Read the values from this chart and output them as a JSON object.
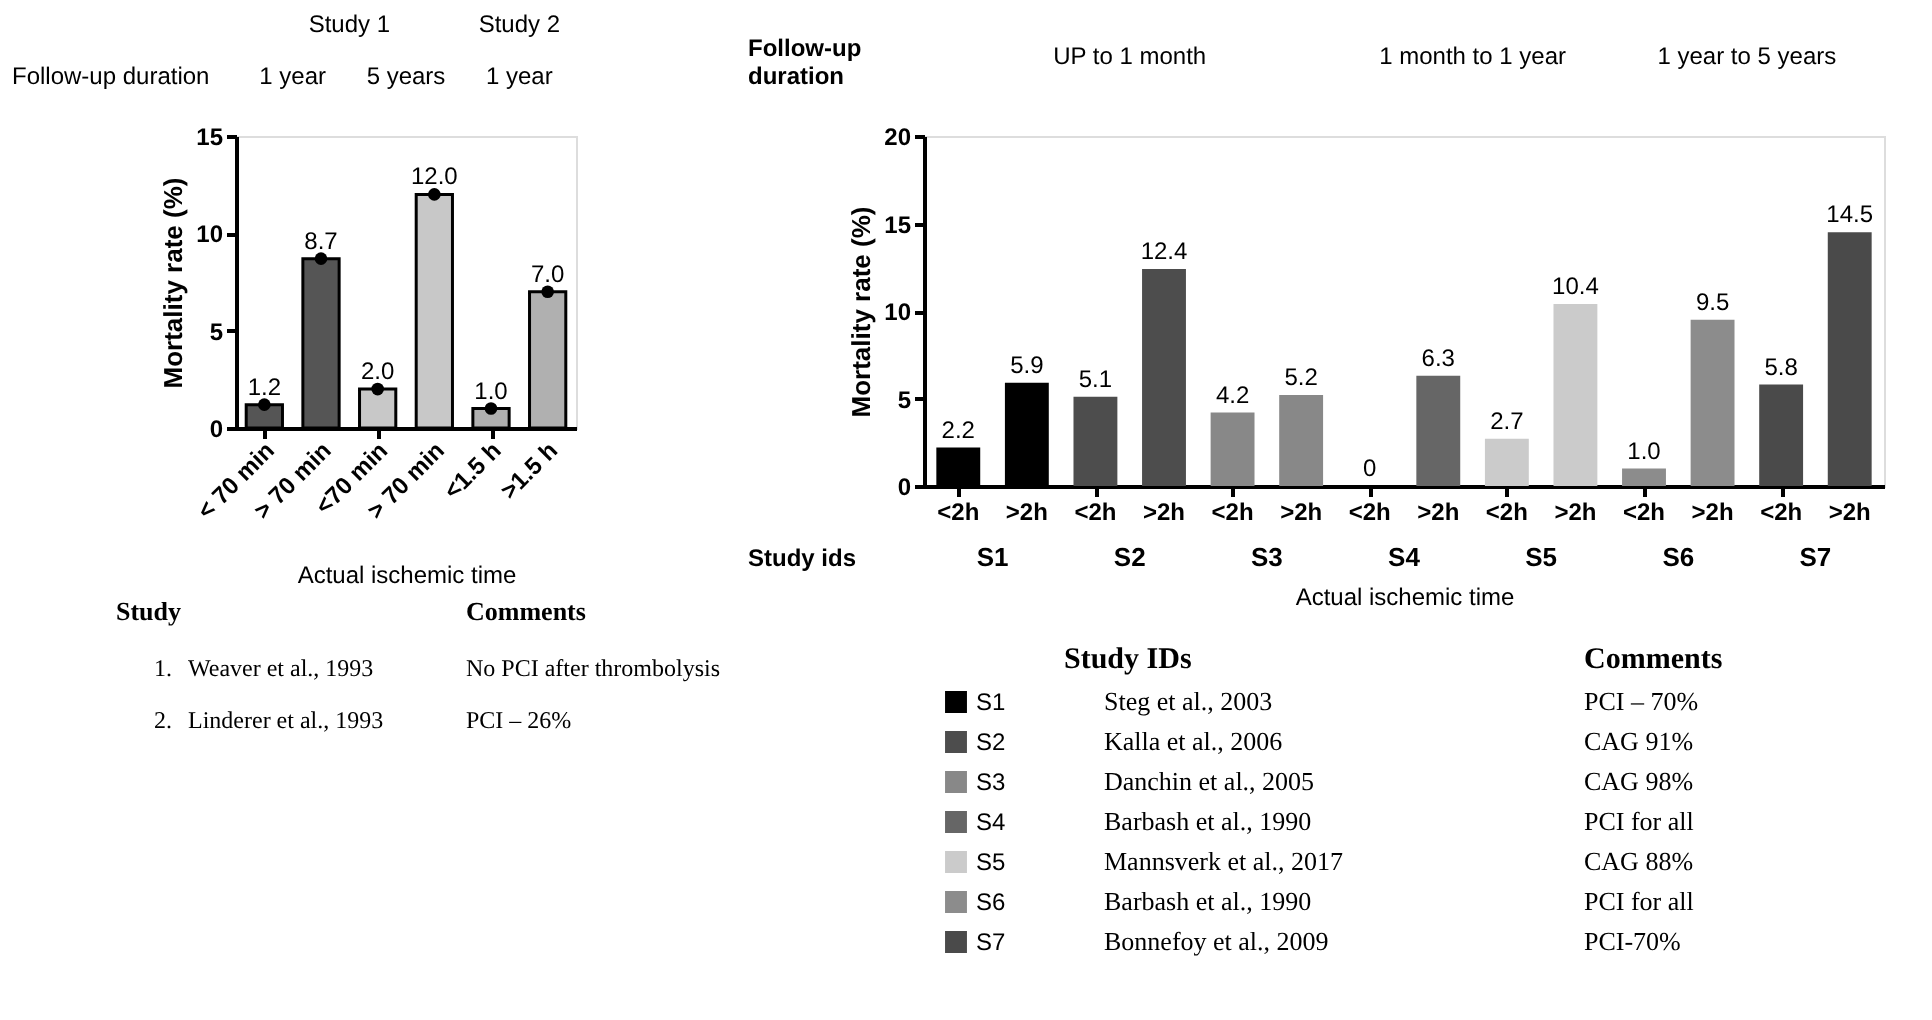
{
  "chart_data": [
    {
      "type": "bar",
      "categories": [
        "< 70 min",
        "> 70 min",
        "<70 min",
        "> 70 min",
        "<1.5 h",
        ">1.5 h"
      ],
      "series": [
        {
          "type": "bar",
          "values": [
            1.2,
            8.7,
            2.0,
            12.0,
            1.0,
            7.0
          ],
          "colors": [
            "#555555",
            "#555555",
            "#c8c8c8",
            "#c8c8c8",
            "#b0b0b0",
            "#b0b0b0"
          ],
          "value_labels": [
            "1.2",
            "8.7",
            "2.0",
            "12.0",
            "1.0",
            "7.0"
          ]
        },
        {
          "type": "scatter",
          "color": "#000000",
          "marker": "circle",
          "values": [
            1.2,
            8.7,
            2.0,
            12.0,
            1.0,
            7.0
          ]
        }
      ],
      "ylim": [
        0,
        15
      ],
      "yticks": [
        0,
        5,
        10,
        15
      ],
      "ylabel": "Mortality rate (%)",
      "xlabel": "Actual ischemic time",
      "annotations": [
        "Study 1",
        "Study 2",
        "Follow-up duration",
        "1 year",
        "5 years",
        "1 year",
        "Study",
        "Comments",
        "1.",
        "Weaver et al., 1993",
        "No PCI after thrombolysis",
        "2.",
        "Linderer et al., 1993",
        "PCI – 26%"
      ]
    },
    {
      "type": "bar",
      "categories": [
        "<2h",
        ">2h",
        "<2h",
        ">2h",
        "<2h",
        ">2h",
        "<2h",
        ">2h",
        "<2h",
        ">2h",
        "<2h",
        ">2h",
        "<2h",
        ">2h"
      ],
      "series": [
        {
          "name": "S1",
          "color": "#000000",
          "values": [
            2.2,
            5.9,
            null,
            null,
            null,
            null,
            null,
            null,
            null,
            null,
            null,
            null,
            null,
            null
          ],
          "value_labels": [
            "2.2",
            "5.9",
            null,
            null,
            null,
            null,
            null,
            null,
            null,
            null,
            null,
            null,
            null,
            null
          ]
        },
        {
          "name": "S2",
          "color": "#4d4d4d",
          "values": [
            null,
            null,
            5.1,
            12.4,
            null,
            null,
            null,
            null,
            null,
            null,
            null,
            null,
            null,
            null
          ],
          "value_labels": [
            null,
            null,
            "5.1",
            "12.4",
            null,
            null,
            null,
            null,
            null,
            null,
            null,
            null,
            null,
            null
          ]
        },
        {
          "name": "S3",
          "color": "#888888",
          "values": [
            null,
            null,
            null,
            null,
            4.2,
            5.2,
            null,
            null,
            null,
            null,
            null,
            null,
            null,
            null
          ],
          "value_labels": [
            null,
            null,
            null,
            null,
            "4.2",
            "5.2",
            null,
            null,
            null,
            null,
            null,
            null,
            null,
            null
          ]
        },
        {
          "name": "S4",
          "color": "#666666",
          "values": [
            null,
            null,
            null,
            null,
            null,
            null,
            0,
            6.3,
            null,
            null,
            null,
            null,
            null,
            null
          ],
          "value_labels": [
            null,
            null,
            null,
            null,
            null,
            null,
            "0",
            "6.3",
            null,
            null,
            null,
            null,
            null,
            null
          ]
        },
        {
          "name": "S5",
          "color": "#cbcbcb",
          "values": [
            null,
            null,
            null,
            null,
            null,
            null,
            null,
            null,
            2.7,
            10.4,
            null,
            null,
            null,
            null
          ],
          "value_labels": [
            null,
            null,
            null,
            null,
            null,
            null,
            null,
            null,
            "2.7",
            "10.4",
            null,
            null,
            null,
            null
          ]
        },
        {
          "name": "S6",
          "color": "#8c8c8c",
          "values": [
            null,
            null,
            null,
            null,
            null,
            null,
            null,
            null,
            null,
            null,
            1.0,
            9.5,
            null,
            null
          ],
          "value_labels": [
            null,
            null,
            null,
            null,
            null,
            null,
            null,
            null,
            null,
            null,
            "1.0",
            "9.5",
            null,
            null
          ]
        },
        {
          "name": "S7",
          "color": "#4a4a4a",
          "values": [
            null,
            null,
            null,
            null,
            null,
            null,
            null,
            null,
            null,
            null,
            null,
            null,
            5.8,
            14.5
          ],
          "value_labels": [
            null,
            null,
            null,
            null,
            null,
            null,
            null,
            null,
            null,
            null,
            null,
            null,
            "5.8",
            "14.5"
          ]
        }
      ],
      "ylim": [
        0,
        20
      ],
      "yticks": [
        0,
        5,
        10,
        15,
        20
      ],
      "legend": "bottom left",
      "ylabel": "Mortality rate (%)",
      "xlabel": "Actual ischemic time",
      "annotations": [
        "Follow-up duration",
        "UP to 1 month",
        "1 month to 1 year",
        "1 year to 5 years",
        "Study ids",
        "Study IDs",
        "Comments",
        "Steg et al., 2003",
        "PCI – 70%",
        "Kalla et al., 2006",
        "CAG 91%",
        "Danchin et al., 2005",
        "CAG 98%",
        "Barbash et al., 1990",
        "PCI for all",
        "Mannsverk et al., 2017",
        "CAG 88%",
        "Barbash et al., 1990",
        "PCI for all",
        "Bonnefoy et al., 2009",
        "PCI-70%"
      ]
    }
  ]
}
